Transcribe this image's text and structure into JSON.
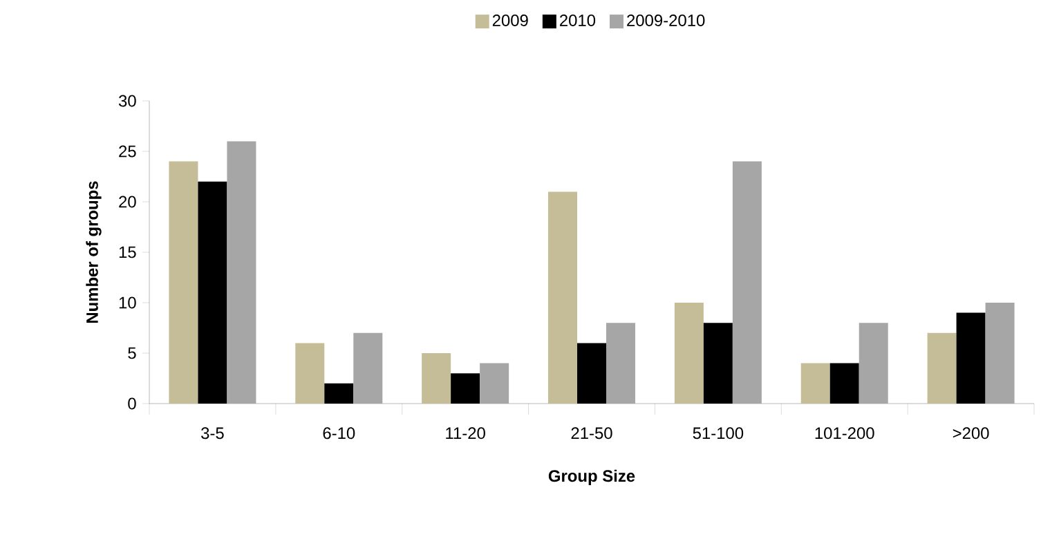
{
  "chart_data": {
    "type": "bar",
    "xlabel": "Group Size",
    "ylabel": "Number of groups",
    "categories": [
      "3-5",
      "6-10",
      "11-20",
      "21-50",
      "51-100",
      "101-200",
      ">200"
    ],
    "series": [
      {
        "name": "2009",
        "color": "#c4bd97",
        "values": [
          24,
          6,
          5,
          21,
          10,
          4,
          7
        ]
      },
      {
        "name": "2010",
        "color": "#000000",
        "values": [
          22,
          2,
          3,
          6,
          8,
          4,
          9
        ]
      },
      {
        "name": "2009-2010",
        "color": "#a6a6a6",
        "values": [
          26,
          7,
          4,
          8,
          24,
          8,
          10
        ]
      }
    ],
    "ylim": [
      0,
      30
    ],
    "yticks": [
      0,
      5,
      10,
      15,
      20,
      25,
      30
    ],
    "grid": false,
    "legend": "top"
  }
}
